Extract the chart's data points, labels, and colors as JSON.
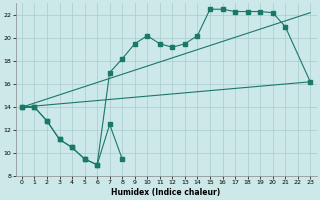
{
  "xlabel": "Humidex (Indice chaleur)",
  "bg_color": "#cce8e8",
  "grid_color": "#aacccc",
  "line_color": "#1a7868",
  "xlim": [
    -0.5,
    23.5
  ],
  "ylim": [
    8,
    23
  ],
  "xticks": [
    0,
    1,
    2,
    3,
    4,
    5,
    6,
    7,
    8,
    9,
    10,
    11,
    12,
    13,
    14,
    15,
    16,
    17,
    18,
    19,
    20,
    21,
    22,
    23
  ],
  "yticks": [
    8,
    10,
    12,
    14,
    16,
    18,
    20,
    22
  ],
  "jagged_x": [
    0,
    1,
    2,
    3,
    4,
    5,
    6,
    7,
    8,
    9,
    10,
    11,
    12,
    13,
    14,
    15,
    16,
    17,
    18,
    19,
    20,
    21,
    23
  ],
  "jagged_y": [
    14.0,
    14.0,
    12.8,
    11.2,
    10.5,
    9.5,
    9.0,
    17.0,
    18.2,
    19.5,
    20.2,
    19.5,
    19.2,
    19.5,
    20.2,
    22.5,
    22.5,
    22.3,
    22.3,
    22.3,
    22.2,
    21.0,
    16.2
  ],
  "bottom_x": [
    0,
    1,
    2,
    3,
    4,
    5,
    6,
    7,
    8
  ],
  "bottom_y": [
    14.0,
    14.0,
    12.8,
    11.2,
    10.5,
    9.5,
    9.0,
    12.5,
    9.5
  ],
  "trend1_x": [
    0,
    23
  ],
  "trend1_y": [
    14.0,
    22.2
  ],
  "trend2_x": [
    0,
    23
  ],
  "trend2_y": [
    14.0,
    16.2
  ]
}
